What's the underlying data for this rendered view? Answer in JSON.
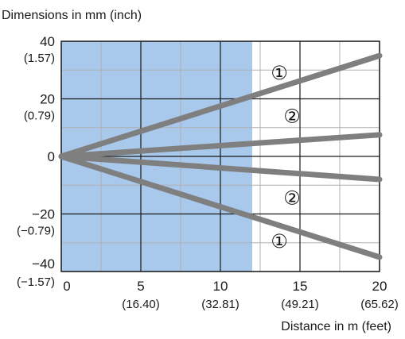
{
  "chart_data": {
    "type": "line",
    "title": "Dimensions in mm (inch)",
    "xlabel": "Distance in m (feet)",
    "x_ticks": [
      {
        "value": 0,
        "label": "0",
        "sublabel": ""
      },
      {
        "value": 5,
        "label": "5",
        "sublabel": "(16.40)"
      },
      {
        "value": 10,
        "label": "10",
        "sublabel": "(32.81)"
      },
      {
        "value": 15,
        "label": "15",
        "sublabel": "(49.21)"
      },
      {
        "value": 20,
        "label": "20",
        "sublabel": "(65.62)"
      }
    ],
    "y_ticks": [
      {
        "value": 40,
        "label": "40",
        "sublabel": "(1.57)"
      },
      {
        "value": 20,
        "label": "20",
        "sublabel": "(0.79)"
      },
      {
        "value": 0,
        "label": "0",
        "sublabel": ""
      },
      {
        "value": -20,
        "label": "−20",
        "sublabel": "(−0.79)"
      },
      {
        "value": -40,
        "label": "−40",
        "sublabel": "(−1.57)"
      }
    ],
    "xlim": [
      0,
      20
    ],
    "ylim": [
      -40,
      40
    ],
    "grid": true,
    "shaded_region": {
      "x_start": 0,
      "x_end": 12,
      "color": "#a8c8ec"
    },
    "line_color": "#7f7f7f",
    "series": [
      {
        "marker": "①",
        "x": [
          0,
          20
        ],
        "y": [
          0,
          35
        ],
        "label_x": 13.7,
        "label_y": 29
      },
      {
        "marker": "②",
        "x": [
          0,
          20
        ],
        "y": [
          0,
          7.5
        ],
        "label_x": 14.5,
        "label_y": 14
      },
      {
        "marker": "②",
        "x": [
          0,
          20
        ],
        "y": [
          0,
          -8
        ],
        "label_x": 14.5,
        "label_y": -14.5
      },
      {
        "marker": "①",
        "x": [
          0,
          20
        ],
        "y": [
          0,
          -35
        ],
        "label_x": 13.7,
        "label_y": -29.5
      }
    ]
  }
}
